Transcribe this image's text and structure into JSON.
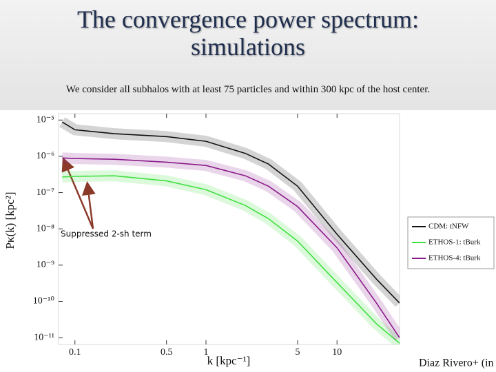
{
  "title": "The convergence power spectrum: simulations",
  "subtitle": "We consider all subhalos with at least 75 particles and within 300 kpc of the host center.",
  "chart_data": {
    "type": "line",
    "xlabel": "k [kpc⁻¹]",
    "ylabel": "Pκ(k) [kpc²]",
    "annotation": "Suppressed 2-sh term",
    "credit": "Diaz Rivero+ (in prep.)",
    "xscale": "log",
    "yscale": "log",
    "xlim": [
      0.075,
      30
    ],
    "ylim": [
      6.5e-12,
      1.5e-05
    ],
    "xticks": [
      0.1,
      0.5,
      1,
      5,
      10
    ],
    "yticks": [
      {
        "value": 1e-05,
        "label": "10⁻⁵"
      },
      {
        "value": 1e-06,
        "label": "10⁻⁶"
      },
      {
        "value": 1e-07,
        "label": "10⁻⁷"
      },
      {
        "value": 1e-08,
        "label": "10⁻⁸"
      },
      {
        "value": 1e-09,
        "label": "10⁻⁹"
      },
      {
        "value": 1e-10,
        "label": "10⁻¹⁰"
      },
      {
        "value": 1e-11,
        "label": "10⁻¹¹"
      }
    ],
    "legend": "right",
    "x": [
      0.08,
      0.1,
      0.2,
      0.5,
      1,
      2,
      3,
      5,
      10,
      20,
      30
    ],
    "series": [
      {
        "name": "CDM: tNFW",
        "color": "#111111",
        "values": [
          8.8e-06,
          5.4e-06,
          4.2e-06,
          3.5e-06,
          2.6e-06,
          1.2e-06,
          6.1e-07,
          1.5e-07,
          7.1e-09,
          4.1e-10,
          9e-11
        ]
      },
      {
        "name": "ETHOS-1: tBurk",
        "color": "#3ee03e",
        "values": [
          2.7e-07,
          2.8e-07,
          2.9e-07,
          2.1e-07,
          1.2e-07,
          4.4e-08,
          1.9e-08,
          4.6e-09,
          3.3e-10,
          2.4e-11,
          7e-12
        ]
      },
      {
        "name": "ETHOS-4: tBurk",
        "color": "#8a1a8a",
        "values": [
          9e-07,
          8.7e-07,
          8.3e-07,
          6.9e-07,
          5.6e-07,
          2.9e-07,
          1.5e-07,
          4.1e-08,
          3e-09,
          9e-11,
          1e-11
        ]
      }
    ]
  }
}
